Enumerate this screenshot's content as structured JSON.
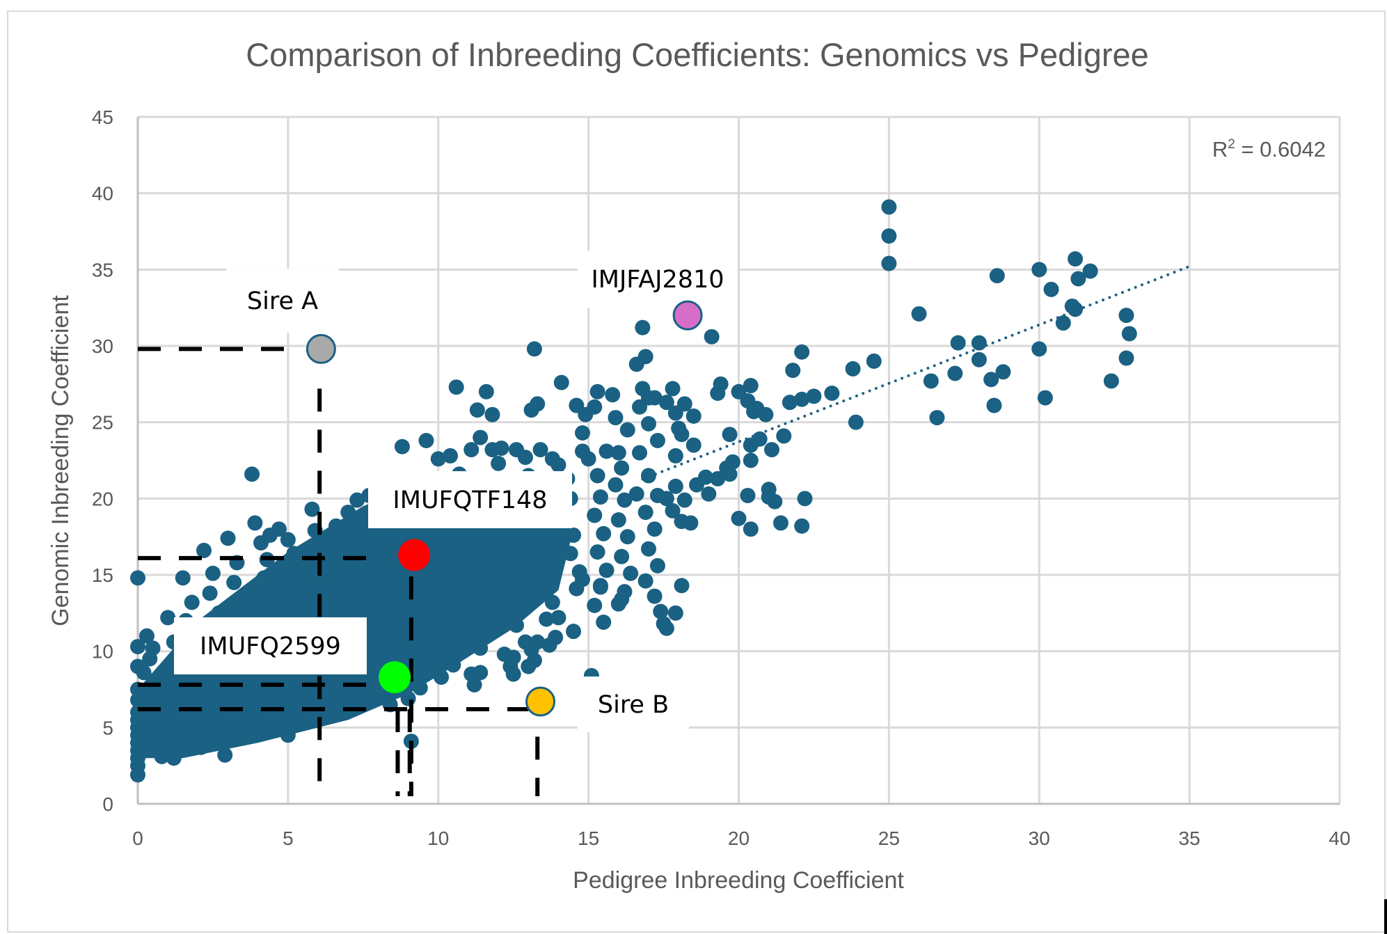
{
  "chart_data": {
    "type": "scatter",
    "title": "Comparison of Inbreeding Coefficients: Genomics vs Pedigree",
    "xlabel": "Pedigree Inbreeding Coefficient",
    "ylabel": "Genomic Inbreeding Coefficient",
    "xlim": [
      0,
      40
    ],
    "ylim": [
      0,
      45
    ],
    "xticks": [
      "0",
      "5",
      "10",
      "15",
      "20",
      "25",
      "30",
      "35",
      "40"
    ],
    "yticks": [
      "0",
      "5",
      "10",
      "15",
      "20",
      "25",
      "30",
      "35",
      "40",
      "45"
    ],
    "grid": true,
    "series_color": "#1a6183",
    "trendline": {
      "type": "linear",
      "style": "dotted",
      "slope": 0.766,
      "intercept": 8.4,
      "x_range": [
        0,
        35
      ],
      "r2_label": "R",
      "r2_sup": "2",
      "r2_value": " = 0.6042"
    },
    "highlights": [
      {
        "label": "Sire A",
        "x": 6.1,
        "y": 29.8,
        "color": "#a9a9a9"
      },
      {
        "label": "IMJFAJ2810",
        "x": 18.3,
        "y": 32.0,
        "color": "#d66ec9"
      },
      {
        "label": "IMUFQTF148",
        "x": 9.2,
        "y": 16.3,
        "color": "#ff0000"
      },
      {
        "label": "IMUFQ2599",
        "x": 8.55,
        "y": 8.3,
        "color": "#00ff00"
      },
      {
        "label": "Sire B",
        "x": 13.4,
        "y": 6.7,
        "color": "#ffc000"
      }
    ],
    "reference_lines": [
      {
        "from": [
          0,
          29.8
        ],
        "to": [
          5.4,
          29.8
        ],
        "style": "dashed"
      },
      {
        "from": [
          6.05,
          27.2
        ],
        "to": [
          6.05,
          1.3
        ],
        "style": "dashed"
      },
      {
        "from": [
          0,
          16.1
        ],
        "to": [
          7.9,
          16.1
        ],
        "style": "dashed"
      },
      {
        "from": [
          9.1,
          14.9
        ],
        "to": [
          9.1,
          0.5
        ],
        "style": "dashed"
      },
      {
        "from": [
          0,
          7.8
        ],
        "to": [
          7.9,
          7.8
        ],
        "style": "dashed"
      },
      {
        "from": [
          0,
          6.2
        ],
        "to": [
          13.0,
          6.2
        ],
        "style": "dashed"
      },
      {
        "from": [
          8.65,
          6.2
        ],
        "to": [
          8.65,
          0.5
        ],
        "style": "dashed"
      },
      {
        "from": [
          9.05,
          6.2
        ],
        "to": [
          9.05,
          0.5
        ],
        "style": "dashed"
      },
      {
        "from": [
          13.3,
          4.4
        ],
        "to": [
          13.3,
          0.5
        ],
        "style": "dashed"
      }
    ],
    "points": [
      [
        0,
        14.8
      ],
      [
        0,
        10.3
      ],
      [
        0,
        9.0
      ],
      [
        0,
        7.5
      ],
      [
        0,
        6.8
      ],
      [
        0,
        6.0
      ],
      [
        0,
        5.5
      ],
      [
        0,
        5.0
      ],
      [
        0,
        4.5
      ],
      [
        0,
        4.0
      ],
      [
        0,
        3.5
      ],
      [
        0,
        3.0
      ],
      [
        0,
        2.5
      ],
      [
        0,
        1.9
      ],
      [
        0.3,
        11.0
      ],
      [
        0.5,
        10.2
      ],
      [
        0.4,
        9.5
      ],
      [
        0.2,
        8.6
      ],
      [
        0.6,
        8.0
      ],
      [
        0.3,
        7.2
      ],
      [
        0.5,
        6.5
      ],
      [
        0.7,
        5.8
      ],
      [
        0.4,
        5.2
      ],
      [
        0.6,
        4.6
      ],
      [
        0.3,
        4.1
      ],
      [
        0.5,
        3.6
      ],
      [
        0.8,
        3.1
      ],
      [
        1.0,
        12.2
      ],
      [
        1.2,
        10.6
      ],
      [
        1.1,
        9.2
      ],
      [
        1.3,
        8.4
      ],
      [
        1.0,
        7.6
      ],
      [
        1.4,
        6.9
      ],
      [
        1.2,
        6.2
      ],
      [
        1.0,
        5.4
      ],
      [
        1.3,
        4.8
      ],
      [
        1.1,
        4.2
      ],
      [
        1.5,
        3.6
      ],
      [
        1.2,
        3.0
      ],
      [
        1.5,
        14.8
      ],
      [
        1.8,
        13.2
      ],
      [
        1.6,
        12.0
      ],
      [
        1.9,
        11.1
      ],
      [
        1.7,
        10.0
      ],
      [
        2.0,
        9.1
      ],
      [
        1.8,
        8.2
      ],
      [
        2.1,
        7.4
      ],
      [
        1.9,
        6.6
      ],
      [
        2.2,
        5.8
      ],
      [
        2.0,
        5.0
      ],
      [
        2.3,
        4.3
      ],
      [
        2.1,
        3.7
      ],
      [
        2.2,
        16.6
      ],
      [
        2.5,
        15.1
      ],
      [
        2.4,
        13.8
      ],
      [
        2.7,
        12.5
      ],
      [
        2.6,
        11.3
      ],
      [
        2.9,
        10.3
      ],
      [
        2.8,
        9.3
      ],
      [
        3.0,
        8.4
      ],
      [
        2.7,
        7.5
      ],
      [
        3.1,
        6.7
      ],
      [
        2.9,
        5.9
      ],
      [
        3.2,
        5.1
      ],
      [
        2.9,
        3.2
      ],
      [
        3.0,
        17.4
      ],
      [
        3.3,
        15.8
      ],
      [
        3.2,
        14.5
      ],
      [
        3.5,
        13.3
      ],
      [
        3.4,
        12.1
      ],
      [
        3.7,
        11.0
      ],
      [
        3.6,
        10.0
      ],
      [
        3.8,
        9.0
      ],
      [
        3.5,
        8.1
      ],
      [
        3.9,
        7.3
      ],
      [
        3.7,
        6.4
      ],
      [
        4.0,
        5.5
      ],
      [
        3.8,
        4.7
      ],
      [
        3.8,
        21.6
      ],
      [
        3.9,
        18.4
      ],
      [
        4.1,
        17.1
      ],
      [
        4.3,
        16.0
      ],
      [
        4.2,
        14.8
      ],
      [
        4.5,
        13.6
      ],
      [
        4.4,
        12.4
      ],
      [
        4.7,
        11.3
      ],
      [
        4.6,
        10.2
      ],
      [
        4.8,
        9.3
      ],
      [
        4.5,
        8.3
      ],
      [
        4.9,
        7.4
      ],
      [
        4.7,
        6.5
      ],
      [
        5.0,
        5.5
      ],
      [
        5.0,
        4.5
      ],
      [
        4.4,
        17.6
      ],
      [
        4.7,
        18.0
      ],
      [
        5.0,
        17.3
      ],
      [
        5.2,
        16.4
      ],
      [
        5.1,
        15.2
      ],
      [
        5.4,
        14.0
      ],
      [
        5.3,
        12.9
      ],
      [
        5.6,
        11.8
      ],
      [
        5.5,
        10.7
      ],
      [
        5.7,
        9.7
      ],
      [
        5.4,
        8.7
      ],
      [
        5.8,
        7.8
      ],
      [
        5.6,
        6.8
      ],
      [
        5.9,
        5.9
      ],
      [
        5.5,
        5.3
      ],
      [
        5.8,
        19.3
      ],
      [
        5.9,
        17.9
      ],
      [
        6.1,
        16.8
      ],
      [
        6.3,
        15.6
      ],
      [
        6.2,
        14.4
      ],
      [
        6.5,
        13.2
      ],
      [
        6.4,
        12.1
      ],
      [
        6.7,
        11.0
      ],
      [
        6.6,
        9.9
      ],
      [
        6.8,
        8.9
      ],
      [
        6.5,
        7.9
      ],
      [
        6.9,
        6.9
      ],
      [
        6.7,
        6.0
      ],
      [
        6.3,
        17.3
      ],
      [
        6.6,
        18.2
      ],
      [
        6.8,
        17.4
      ],
      [
        7.0,
        16.6
      ],
      [
        7.1,
        15.5
      ],
      [
        7.3,
        14.3
      ],
      [
        7.2,
        13.1
      ],
      [
        7.5,
        12.0
      ],
      [
        7.4,
        10.9
      ],
      [
        7.6,
        9.8
      ],
      [
        7.3,
        8.8
      ],
      [
        7.7,
        7.8
      ],
      [
        7.5,
        6.9
      ],
      [
        7.0,
        19.1
      ],
      [
        7.3,
        19.9
      ],
      [
        7.5,
        18.5
      ],
      [
        7.8,
        17.7
      ],
      [
        7.9,
        16.5
      ],
      [
        8.1,
        15.3
      ],
      [
        8.0,
        14.2
      ],
      [
        8.3,
        13.0
      ],
      [
        8.2,
        11.9
      ],
      [
        8.4,
        10.8
      ],
      [
        8.1,
        9.7
      ],
      [
        8.5,
        8.8
      ],
      [
        8.3,
        7.5
      ],
      [
        8.4,
        6.5
      ],
      [
        7.7,
        20.2
      ],
      [
        8.0,
        20.8
      ],
      [
        8.3,
        19.8
      ],
      [
        8.6,
        18.6
      ],
      [
        8.7,
        17.4
      ],
      [
        8.9,
        16.2
      ],
      [
        8.8,
        15.1
      ],
      [
        9.1,
        13.9
      ],
      [
        9.0,
        12.8
      ],
      [
        9.2,
        11.7
      ],
      [
        8.9,
        10.6
      ],
      [
        9.3,
        9.6
      ],
      [
        9.1,
        8.6
      ],
      [
        9.4,
        7.6
      ],
      [
        9.0,
        6.9
      ],
      [
        9.1,
        4.1
      ],
      [
        8.8,
        23.4
      ],
      [
        9.6,
        23.8
      ],
      [
        9.3,
        21.2
      ],
      [
        9.6,
        20.2
      ],
      [
        9.8,
        19.0
      ],
      [
        10.0,
        17.8
      ],
      [
        9.9,
        16.6
      ],
      [
        10.2,
        15.4
      ],
      [
        10.1,
        14.3
      ],
      [
        10.3,
        13.2
      ],
      [
        10.0,
        12.1
      ],
      [
        10.4,
        11.1
      ],
      [
        10.2,
        10.1
      ],
      [
        10.5,
        9.1
      ],
      [
        10.1,
        8.3
      ],
      [
        10.0,
        22.6
      ],
      [
        10.4,
        22.8
      ],
      [
        10.7,
        21.6
      ],
      [
        10.8,
        20.4
      ],
      [
        11.0,
        19.2
      ],
      [
        11.2,
        18.0
      ],
      [
        11.1,
        16.8
      ],
      [
        11.4,
        15.6
      ],
      [
        11.3,
        14.5
      ],
      [
        11.5,
        13.4
      ],
      [
        11.2,
        12.3
      ],
      [
        11.6,
        11.2
      ],
      [
        11.4,
        10.2
      ],
      [
        11.1,
        8.5
      ],
      [
        11.2,
        7.8
      ],
      [
        10.6,
        27.3
      ],
      [
        11.6,
        27.0
      ],
      [
        11.3,
        25.8
      ],
      [
        11.8,
        25.5
      ],
      [
        11.1,
        23.2
      ],
      [
        11.4,
        24.0
      ],
      [
        11.8,
        23.2
      ],
      [
        12.0,
        22.3
      ],
      [
        12.2,
        21.1
      ],
      [
        12.4,
        19.9
      ],
      [
        12.3,
        18.7
      ],
      [
        12.6,
        17.5
      ],
      [
        12.5,
        16.3
      ],
      [
        12.7,
        15.1
      ],
      [
        12.4,
        14.0
      ],
      [
        12.8,
        12.8
      ],
      [
        12.6,
        11.7
      ],
      [
        12.9,
        10.6
      ],
      [
        12.2,
        9.8
      ],
      [
        12.4,
        9.0
      ],
      [
        12.5,
        8.5
      ],
      [
        11.4,
        8.6
      ],
      [
        12.1,
        23.3
      ],
      [
        12.6,
        23.2
      ],
      [
        12.9,
        22.7
      ],
      [
        13.1,
        25.8
      ],
      [
        13.3,
        26.2
      ],
      [
        13.2,
        29.8
      ],
      [
        13.4,
        23.2
      ],
      [
        13.0,
        21.5
      ],
      [
        13.2,
        20.3
      ],
      [
        13.4,
        19.1
      ],
      [
        13.6,
        17.9
      ],
      [
        13.5,
        16.7
      ],
      [
        13.7,
        15.5
      ],
      [
        13.4,
        14.4
      ],
      [
        13.8,
        13.2
      ],
      [
        13.6,
        12.1
      ],
      [
        13.3,
        10.6
      ],
      [
        13.1,
        10.1
      ],
      [
        13.0,
        9.0
      ],
      [
        13.2,
        9.4
      ],
      [
        12.5,
        9.6
      ],
      [
        13.8,
        22.6
      ],
      [
        14.0,
        22.2
      ],
      [
        14.1,
        27.6
      ],
      [
        14.3,
        21.3
      ],
      [
        14.4,
        20.0
      ],
      [
        14.2,
        18.8
      ],
      [
        14.5,
        17.6
      ],
      [
        14.4,
        16.4
      ],
      [
        14.7,
        15.2
      ],
      [
        14.6,
        14.1
      ],
      [
        14.0,
        12.2
      ],
      [
        14.5,
        11.3
      ],
      [
        13.9,
        10.9
      ],
      [
        13.7,
        10.4
      ],
      [
        14.6,
        26.1
      ],
      [
        14.8,
        24.3
      ],
      [
        14.9,
        25.5
      ],
      [
        15.2,
        26.0
      ],
      [
        14.8,
        23.1
      ],
      [
        15.0,
        22.6
      ],
      [
        15.3,
        21.5
      ],
      [
        15.4,
        20.1
      ],
      [
        15.2,
        18.9
      ],
      [
        15.5,
        17.7
      ],
      [
        15.3,
        16.5
      ],
      [
        15.6,
        15.3
      ],
      [
        15.4,
        14.2
      ],
      [
        15.2,
        13.0
      ],
      [
        15.5,
        11.9
      ],
      [
        14.8,
        14.7
      ],
      [
        15.1,
        8.4
      ],
      [
        15.3,
        27.0
      ],
      [
        15.8,
        26.8
      ],
      [
        15.9,
        25.3
      ],
      [
        15.6,
        23.1
      ],
      [
        16.0,
        23.0
      ],
      [
        16.1,
        22.0
      ],
      [
        15.9,
        20.9
      ],
      [
        16.2,
        19.9
      ],
      [
        16.0,
        18.6
      ],
      [
        16.3,
        17.5
      ],
      [
        16.1,
        16.2
      ],
      [
        16.4,
        15.1
      ],
      [
        16.2,
        13.9
      ],
      [
        16.0,
        13.1
      ],
      [
        16.1,
        13.4
      ],
      [
        15.4,
        14.3
      ],
      [
        16.3,
        24.5
      ],
      [
        16.6,
        28.8
      ],
      [
        16.8,
        31.2
      ],
      [
        16.9,
        29.3
      ],
      [
        17.0,
        26.6
      ],
      [
        16.7,
        26.0
      ],
      [
        16.8,
        27.2
      ],
      [
        17.2,
        26.6
      ],
      [
        17.0,
        24.9
      ],
      [
        17.3,
        23.8
      ],
      [
        16.7,
        23.0
      ],
      [
        17.0,
        21.5
      ],
      [
        16.6,
        20.3
      ],
      [
        17.3,
        20.2
      ],
      [
        16.9,
        19.1
      ],
      [
        17.2,
        18.0
      ],
      [
        17.0,
        16.7
      ],
      [
        17.3,
        15.6
      ],
      [
        16.9,
        14.6
      ],
      [
        17.2,
        13.6
      ],
      [
        17.4,
        12.6
      ],
      [
        17.5,
        11.8
      ],
      [
        17.6,
        26.3
      ],
      [
        17.8,
        27.2
      ],
      [
        17.9,
        25.6
      ],
      [
        18.0,
        24.6
      ],
      [
        18.1,
        24.2
      ],
      [
        17.9,
        22.8
      ],
      [
        18.2,
        26.2
      ],
      [
        17.6,
        20.0
      ],
      [
        17.9,
        20.8
      ],
      [
        18.2,
        19.9
      ],
      [
        17.8,
        19.2
      ],
      [
        18.1,
        18.5
      ],
      [
        18.4,
        18.4
      ],
      [
        17.9,
        12.5
      ],
      [
        17.6,
        11.5
      ],
      [
        18.1,
        14.3
      ],
      [
        19.1,
        30.6
      ],
      [
        18.5,
        25.4
      ],
      [
        18.5,
        23.5
      ],
      [
        18.6,
        20.9
      ],
      [
        18.9,
        21.4
      ],
      [
        19.0,
        20.3
      ],
      [
        19.3,
        26.9
      ],
      [
        19.4,
        27.5
      ],
      [
        19.7,
        24.2
      ],
      [
        19.6,
        22.0
      ],
      [
        19.7,
        21.6
      ],
      [
        19.8,
        22.4
      ],
      [
        19.3,
        21.3
      ],
      [
        20.0,
        27.0
      ],
      [
        20.0,
        18.7
      ],
      [
        20.3,
        26.4
      ],
      [
        20.4,
        27.4
      ],
      [
        20.5,
        25.7
      ],
      [
        20.4,
        23.5
      ],
      [
        20.7,
        23.9
      ],
      [
        20.4,
        22.5
      ],
      [
        20.3,
        20.2
      ],
      [
        20.4,
        18.0
      ],
      [
        20.6,
        25.9
      ],
      [
        20.9,
        25.5
      ],
      [
        21.0,
        20.6
      ],
      [
        21.2,
        19.8
      ],
      [
        21.1,
        23.2
      ],
      [
        21.4,
        18.4
      ],
      [
        21.0,
        20.1
      ],
      [
        21.5,
        24.1
      ],
      [
        21.7,
        26.3
      ],
      [
        21.8,
        28.4
      ],
      [
        22.1,
        29.6
      ],
      [
        22.1,
        26.5
      ],
      [
        22.2,
        20.0
      ],
      [
        22.1,
        18.2
      ],
      [
        22.5,
        26.7
      ],
      [
        23.1,
        26.9
      ],
      [
        23.8,
        28.5
      ],
      [
        23.9,
        25.0
      ],
      [
        24.5,
        29.0
      ],
      [
        25.0,
        39.1
      ],
      [
        25.0,
        37.2
      ],
      [
        25.0,
        35.4
      ],
      [
        26.0,
        32.1
      ],
      [
        26.4,
        27.7
      ],
      [
        26.6,
        25.3
      ],
      [
        27.2,
        28.2
      ],
      [
        27.3,
        30.2
      ],
      [
        28.0,
        30.2
      ],
      [
        28.0,
        29.1
      ],
      [
        28.5,
        26.1
      ],
      [
        28.4,
        27.8
      ],
      [
        28.8,
        28.3
      ],
      [
        28.6,
        34.6
      ],
      [
        30.0,
        35.0
      ],
      [
        30.0,
        29.8
      ],
      [
        30.2,
        26.6
      ],
      [
        30.4,
        33.7
      ],
      [
        30.8,
        31.5
      ],
      [
        31.1,
        32.6
      ],
      [
        31.2,
        32.4
      ],
      [
        31.2,
        35.7
      ],
      [
        31.3,
        34.4
      ],
      [
        31.7,
        34.9
      ],
      [
        32.4,
        27.7
      ],
      [
        32.9,
        29.2
      ],
      [
        32.9,
        32.0
      ],
      [
        33.0,
        30.8
      ]
    ]
  }
}
